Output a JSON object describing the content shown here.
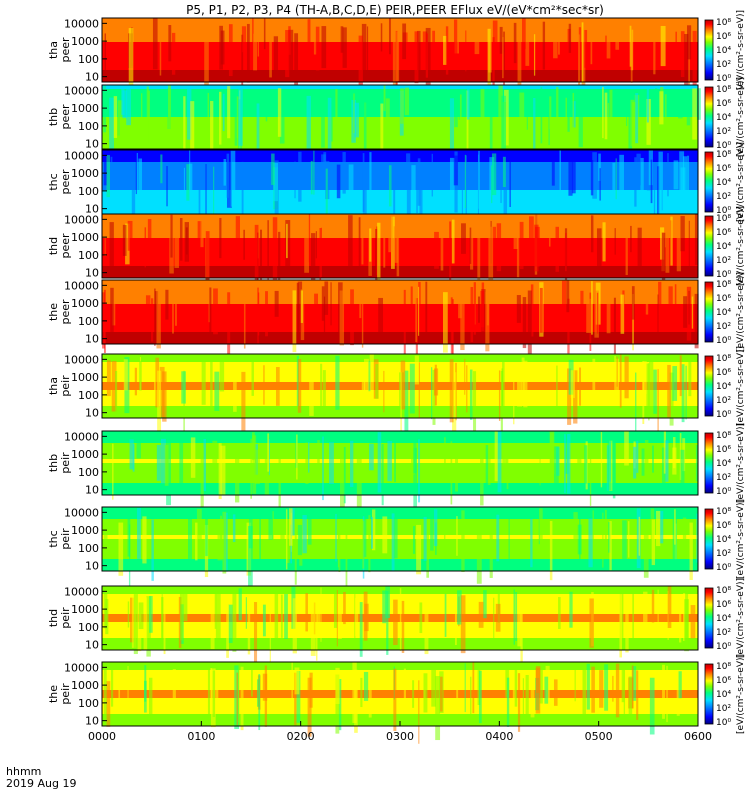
{
  "chart_data": {
    "type": "heatmap",
    "title": "P5, P1, P2, P3, P4 (TH-A,B,C,D,E) PEIR,PEER EFlux eV/(eV*cm²*sec*sr)",
    "x": {
      "label_line1": "hhmm",
      "label_line2": "2019 Aug 19",
      "ticks": [
        "0000",
        "0100",
        "0200",
        "0300",
        "0400",
        "0500",
        "0600"
      ],
      "tick_minutes": [
        0,
        60,
        120,
        180,
        240,
        300,
        360
      ],
      "range_minutes": [
        0,
        360
      ]
    },
    "colorbar": {
      "ticks": [
        "10⁰",
        "10²",
        "10⁴",
        "10⁶",
        "10⁸"
      ],
      "exponents": [
        0,
        2,
        4,
        6,
        8
      ],
      "colors": [
        "#000080",
        "#0000ff",
        "#0080ff",
        "#00e0ff",
        "#00ff80",
        "#80ff00",
        "#ffff00",
        "#ff8000",
        "#ff0000",
        "#c00000"
      ],
      "label": "[eV/(cm²-s-sr-eV)]"
    },
    "panels": [
      {
        "name": "tha",
        "quantity": "peer",
        "label_line1": "tha",
        "label_line2": "peer",
        "yticks": [
          "10",
          "100",
          "1000",
          "10000"
        ],
        "ylog_range": [
          5,
          20000
        ],
        "dominant_eflux_exp": 7
      },
      {
        "name": "thb",
        "quantity": "peer",
        "label_line1": "thb",
        "label_line2": "peer",
        "yticks": [
          "10",
          "100",
          "1000",
          "10000"
        ],
        "ylog_range": [
          5,
          20000
        ],
        "dominant_eflux_exp": 4
      },
      {
        "name": "thc",
        "quantity": "peer",
        "label_line1": "thc",
        "label_line2": "peer",
        "yticks": [
          "10",
          "100",
          "1000",
          "10000"
        ],
        "ylog_range": [
          5,
          20000
        ],
        "dominant_eflux_exp": 2
      },
      {
        "name": "thd",
        "quantity": "peer",
        "label_line1": "thd",
        "label_line2": "peer",
        "yticks": [
          "10",
          "100",
          "1000",
          "10000"
        ],
        "ylog_range": [
          5,
          20000
        ],
        "dominant_eflux_exp": 7
      },
      {
        "name": "the",
        "quantity": "peer",
        "label_line1": "the",
        "label_line2": "peer",
        "yticks": [
          "10",
          "100",
          "1000",
          "10000"
        ],
        "ylog_range": [
          5,
          20000
        ],
        "dominant_eflux_exp": 7
      },
      {
        "name": "tha",
        "quantity": "peir",
        "label_line1": "tha",
        "label_line2": "peir",
        "yticks": [
          "10",
          "100",
          "1000",
          "10000"
        ],
        "ylog_range": [
          5,
          20000
        ],
        "dominant_eflux_exp": 5
      },
      {
        "name": "thb",
        "quantity": "peir",
        "label_line1": "thb",
        "label_line2": "peir",
        "yticks": [
          "10",
          "100",
          "1000",
          "10000"
        ],
        "ylog_range": [
          5,
          20000
        ],
        "dominant_eflux_exp": 4
      },
      {
        "name": "thc",
        "quantity": "peir",
        "label_line1": "thc",
        "label_line2": "peir",
        "yticks": [
          "10",
          "100",
          "1000",
          "10000"
        ],
        "ylog_range": [
          5,
          20000
        ],
        "dominant_eflux_exp": 4
      },
      {
        "name": "thd",
        "quantity": "peir",
        "label_line1": "thd",
        "label_line2": "peir",
        "yticks": [
          "10",
          "100",
          "1000",
          "10000"
        ],
        "ylog_range": [
          5,
          20000
        ],
        "dominant_eflux_exp": 5
      },
      {
        "name": "the",
        "quantity": "peir",
        "label_line1": "the",
        "label_line2": "peir",
        "yticks": [
          "10",
          "100",
          "1000",
          "10000"
        ],
        "ylog_range": [
          5,
          20000
        ],
        "dominant_eflux_exp": 5
      }
    ]
  }
}
